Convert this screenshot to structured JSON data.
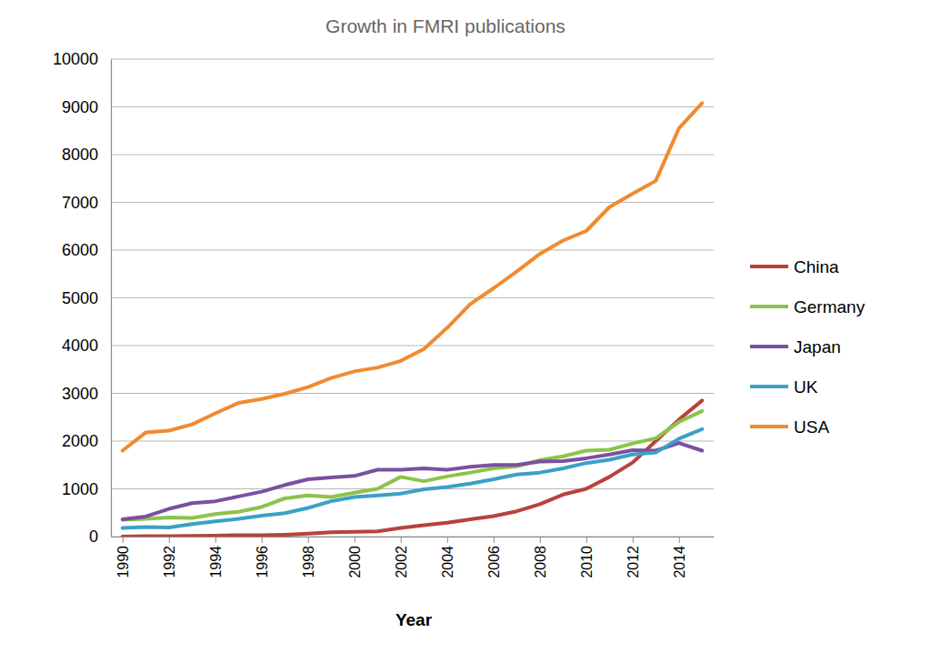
{
  "chart_data": {
    "type": "line",
    "title": "Growth in FMRI publications",
    "x_label": "Year",
    "x": [
      1990,
      1991,
      1992,
      1993,
      1994,
      1995,
      1996,
      1997,
      1998,
      1999,
      2000,
      2001,
      2002,
      2003,
      2004,
      2005,
      2006,
      2007,
      2008,
      2009,
      2010,
      2011,
      2012,
      2013,
      2014,
      2015
    ],
    "xlim": [
      1989.5,
      2015.5
    ],
    "xticks": [
      1990,
      1992,
      1994,
      1996,
      1998,
      2000,
      2002,
      2004,
      2006,
      2008,
      2010,
      2012,
      2014
    ],
    "ylim": [
      0,
      10000
    ],
    "yticks": [
      0,
      1000,
      2000,
      3000,
      4000,
      5000,
      6000,
      7000,
      8000,
      9000,
      10000
    ],
    "grid": true,
    "legend": "right",
    "series": [
      {
        "name": "China",
        "color": "#b8423c",
        "values": [
          0,
          10,
          10,
          15,
          20,
          30,
          30,
          40,
          60,
          90,
          100,
          110,
          180,
          240,
          290,
          360,
          430,
          530,
          680,
          880,
          1000,
          1250,
          1550,
          2000,
          2450,
          2850
        ]
      },
      {
        "name": "Germany",
        "color": "#8cc34a",
        "values": [
          350,
          370,
          400,
          390,
          470,
          520,
          620,
          800,
          860,
          830,
          920,
          1000,
          1250,
          1160,
          1260,
          1340,
          1430,
          1470,
          1600,
          1680,
          1800,
          1820,
          1950,
          2060,
          2400,
          2630
        ]
      },
      {
        "name": "Japan",
        "color": "#7b4fa1",
        "values": [
          360,
          420,
          580,
          700,
          740,
          840,
          940,
          1080,
          1200,
          1240,
          1270,
          1400,
          1400,
          1430,
          1400,
          1460,
          1500,
          1500,
          1570,
          1580,
          1640,
          1720,
          1810,
          1800,
          1960,
          1800
        ]
      },
      {
        "name": "UK",
        "color": "#3ba1c6",
        "values": [
          180,
          200,
          190,
          260,
          320,
          370,
          440,
          490,
          600,
          740,
          830,
          860,
          900,
          990,
          1040,
          1110,
          1200,
          1300,
          1340,
          1430,
          1540,
          1610,
          1720,
          1760,
          2050,
          2250
        ]
      },
      {
        "name": "USA",
        "color": "#f08b30",
        "values": [
          1800,
          2180,
          2220,
          2350,
          2580,
          2800,
          2880,
          2990,
          3130,
          3320,
          3460,
          3540,
          3680,
          3930,
          4370,
          4870,
          5200,
          5550,
          5920,
          6200,
          6400,
          6900,
          7180,
          7450,
          8550,
          9080
        ]
      }
    ]
  }
}
